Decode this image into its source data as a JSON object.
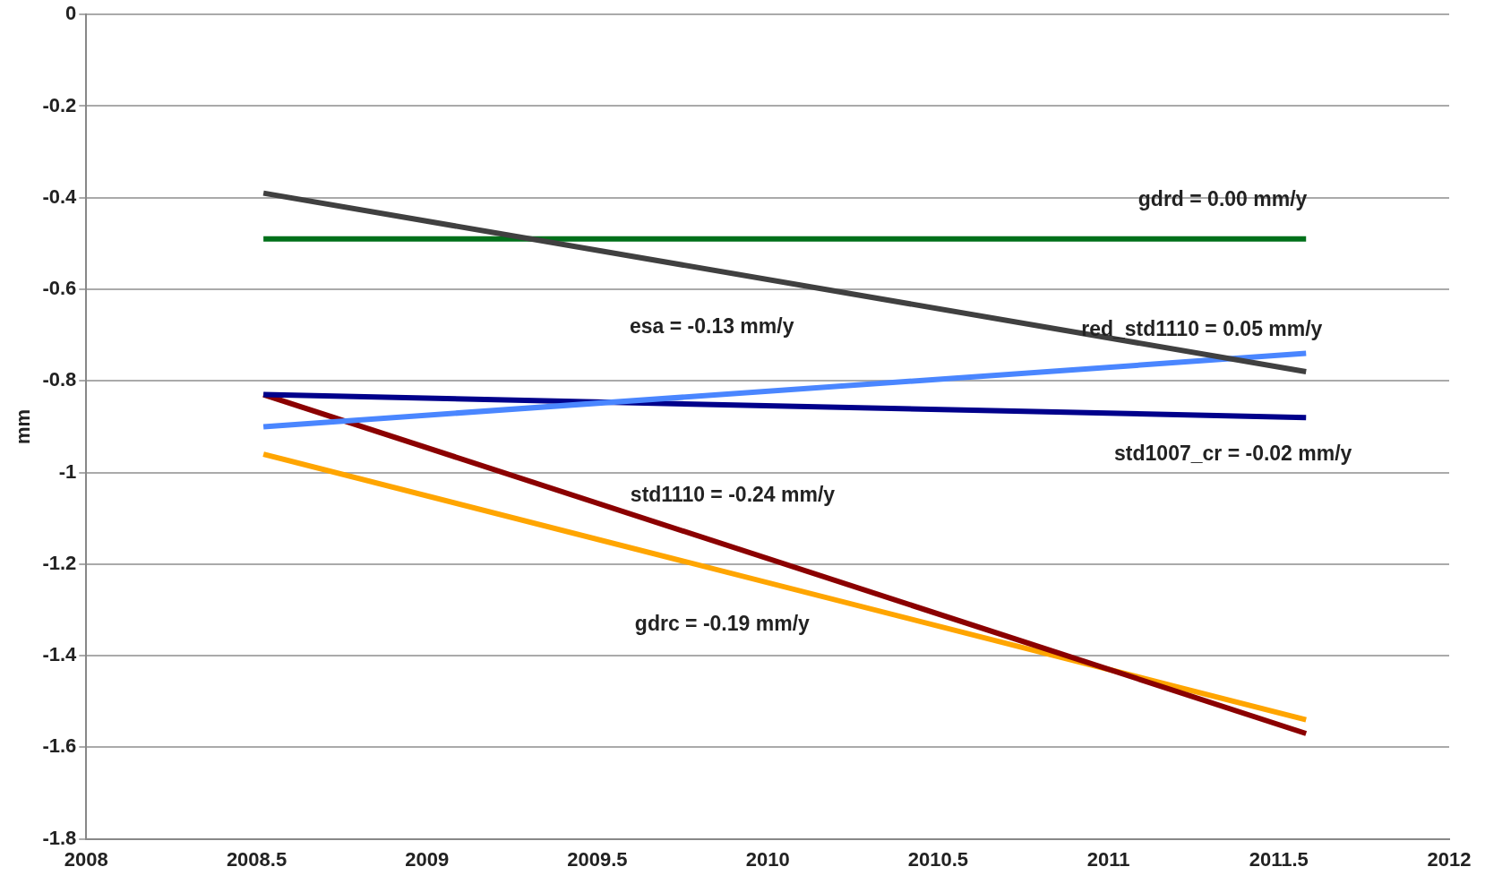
{
  "chart_data": {
    "type": "line",
    "ylabel": "mm",
    "x": [
      2008.52,
      2011.58
    ],
    "xlim": [
      2008,
      2012
    ],
    "xticks": [
      2008,
      2008.5,
      2009,
      2009.5,
      2010,
      2010.5,
      2011,
      2011.5,
      2012
    ],
    "ylim": [
      -1.8,
      0
    ],
    "yticks": [
      -1.8,
      -1.6,
      -1.4,
      -1.2,
      -1,
      -0.8,
      -0.6,
      -0.4,
      -0.2,
      0
    ],
    "grid": "y",
    "marker": "none",
    "line_style": "solid",
    "series": [
      {
        "name": "esa = -0.13 mm/y",
        "color": "#404040",
        "values": [
          -0.39,
          -0.78
        ]
      },
      {
        "name": "gdrd = 0.00 mm/y",
        "color": "#00701a",
        "values": [
          -0.49,
          -0.49
        ]
      },
      {
        "name": "red_std1110 = 0.05 mm/y",
        "color": "#4a86ff",
        "values": [
          -0.9,
          -0.74
        ]
      },
      {
        "name": "std1007_cr = -0.02 mm/y",
        "color": "#00008b",
        "values": [
          -0.83,
          -0.88
        ]
      },
      {
        "name": "std1110 = -0.24 mm/y",
        "color": "#8b0000",
        "values": [
          -0.83,
          -1.57
        ]
      },
      {
        "name": "gdrc = -0.19 mm/y",
        "color": "#ffa500",
        "values": [
          -0.96,
          -1.54
        ]
      }
    ]
  }
}
